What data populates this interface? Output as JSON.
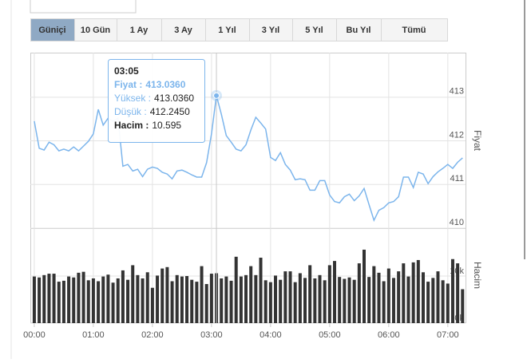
{
  "tabs": {
    "items": [
      "Güniçi",
      "10 Gün",
      "1 Ay",
      "3 Ay",
      "1 Yıl",
      "3 Yıl",
      "5 Yıl",
      "Bu Yıl",
      "Tümü"
    ],
    "selected": 0
  },
  "chart_data": {
    "type": "line",
    "x": [
      0,
      5,
      10,
      15,
      20,
      25,
      30,
      35,
      40,
      45,
      50,
      55,
      60,
      65,
      70,
      75,
      80,
      85,
      90,
      95,
      100,
      105,
      110,
      115,
      120,
      125,
      130,
      135,
      140,
      145,
      150,
      155,
      160,
      165,
      170,
      175,
      180,
      185,
      190,
      195,
      200,
      205,
      210,
      215,
      220,
      225,
      230,
      235,
      240,
      245,
      250,
      255,
      260,
      265,
      270,
      275,
      280,
      285,
      290,
      295,
      300,
      305,
      310,
      315,
      320,
      325,
      330,
      335,
      340,
      345,
      350,
      355,
      360,
      365,
      370,
      375,
      380,
      385,
      390,
      395,
      400,
      405,
      410,
      415,
      420,
      425,
      430,
      435
    ],
    "xlim": [
      -4,
      438
    ],
    "xticks": [
      {
        "value": 0,
        "label": "00:00"
      },
      {
        "value": 60,
        "label": "01:00"
      },
      {
        "value": 120,
        "label": "02:00"
      },
      {
        "value": 180,
        "label": "03:00"
      },
      {
        "value": 240,
        "label": "04:00"
      },
      {
        "value": 300,
        "label": "05:00"
      },
      {
        "value": 360,
        "label": "06:00"
      },
      {
        "value": 420,
        "label": "07:00"
      }
    ],
    "ylabel": "Fiyat",
    "ylim": [
      410,
      414.02
    ],
    "yticks": [
      410,
      411,
      412,
      413
    ],
    "grid": true,
    "series": [
      {
        "color": "#7cb5ec",
        "values": [
          412.45,
          411.83,
          411.79,
          411.97,
          411.91,
          411.77,
          411.81,
          411.77,
          411.86,
          411.77,
          411.88,
          411.99,
          412.16,
          412.72,
          412.36,
          412.52,
          412.45,
          412.52,
          411.42,
          411.46,
          411.31,
          411.35,
          411.18,
          411.35,
          411.4,
          411.37,
          411.28,
          411.24,
          411.13,
          411.31,
          411.33,
          411.28,
          411.22,
          411.17,
          411.17,
          411.5,
          412.16,
          413.036,
          412.61,
          412.12,
          411.97,
          411.81,
          411.77,
          411.91,
          412.25,
          412.54,
          412.41,
          412.27,
          411.62,
          411.55,
          411.73,
          411.46,
          411.33,
          411.11,
          411.13,
          411.11,
          410.87,
          410.87,
          411.09,
          411.09,
          410.76,
          410.61,
          410.58,
          410.72,
          410.78,
          410.63,
          410.74,
          410.91,
          410.54,
          410.18,
          410.41,
          410.47,
          410.58,
          410.61,
          410.72,
          411.17,
          411.17,
          410.93,
          411.28,
          411.24,
          411.02,
          411.18,
          411.29,
          411.37,
          411.46,
          411.37,
          411.51,
          411.61
        ]
      }
    ],
    "volume": {
      "type": "bar",
      "ylabel": "Hacim",
      "color": "#333333",
      "ylim": [
        0,
        20000
      ],
      "yticks": [
        {
          "value": 0,
          "label": "0k"
        },
        {
          "value": 10000,
          "label": "10k"
        }
      ],
      "values": [
        9900,
        9700,
        10200,
        10500,
        10500,
        8800,
        9000,
        9900,
        9700,
        10700,
        10900,
        9100,
        9500,
        8900,
        9900,
        10300,
        8600,
        9500,
        11200,
        9200,
        12300,
        10200,
        9500,
        10800,
        7500,
        10100,
        11600,
        11900,
        8900,
        10200,
        9900,
        10000,
        9200,
        8800,
        12100,
        8300,
        10500,
        10595,
        9500,
        9900,
        9000,
        14100,
        9900,
        10200,
        12100,
        10200,
        13900,
        9100,
        8700,
        10100,
        9200,
        11000,
        11000,
        8700,
        10600,
        9600,
        12300,
        9500,
        10200,
        9100,
        12300,
        13200,
        9800,
        9400,
        9700,
        9200,
        12700,
        15600,
        9800,
        12100,
        10700,
        8900,
        11600,
        9600,
        11000,
        12700,
        9900,
        12900,
        13400,
        10800,
        8800,
        9600,
        11000,
        9100,
        8400,
        13600,
        12700,
        7200
      ]
    },
    "tooltip": {
      "point": 37,
      "title": "03:05",
      "rows": [
        {
          "label": "Fiyat :",
          "value": "413.0360"
        },
        {
          "label": "Yüksek :",
          "value": "413.0360"
        },
        {
          "label": "Düşük :",
          "value": "412.2450"
        },
        {
          "label": "Hacim :",
          "value": "10.595"
        }
      ]
    }
  }
}
